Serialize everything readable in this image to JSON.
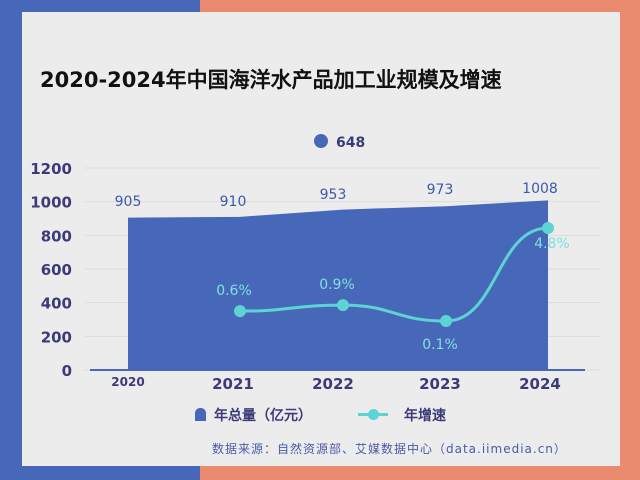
{
  "title": "2020-2024年中国海洋水产品加工业规模及增速",
  "source": "数据来源：自然资源部、艾媒数据中心（data.iimedia.cn）",
  "chart_data": {
    "type": "area+line",
    "title": "2020-2024年中国海洋水产品加工业规模及增速",
    "categories": [
      "2020",
      "2021",
      "2022",
      "2023",
      "2024"
    ],
    "ylim": [
      0,
      1200
    ],
    "yticks": [
      "0",
      "200",
      "400",
      "600",
      "800",
      "1000",
      "1200"
    ],
    "grid": true,
    "legend_position": "bottom",
    "stray_label": "648",
    "series": [
      {
        "name": "年总量（亿元）",
        "type": "area",
        "values": [
          905,
          910,
          953,
          973,
          1008
        ],
        "labels": [
          "905",
          "910",
          "953",
          "973",
          "1008"
        ],
        "color": "#4767b9"
      },
      {
        "name": "年增速",
        "type": "line",
        "values": [
          null,
          0.6,
          0.9,
          0.1,
          4.8
        ],
        "labels": [
          "",
          "0.6%",
          "0.9%",
          "0.1%",
          "4.8%"
        ],
        "color": "#5dd3d3"
      }
    ]
  }
}
